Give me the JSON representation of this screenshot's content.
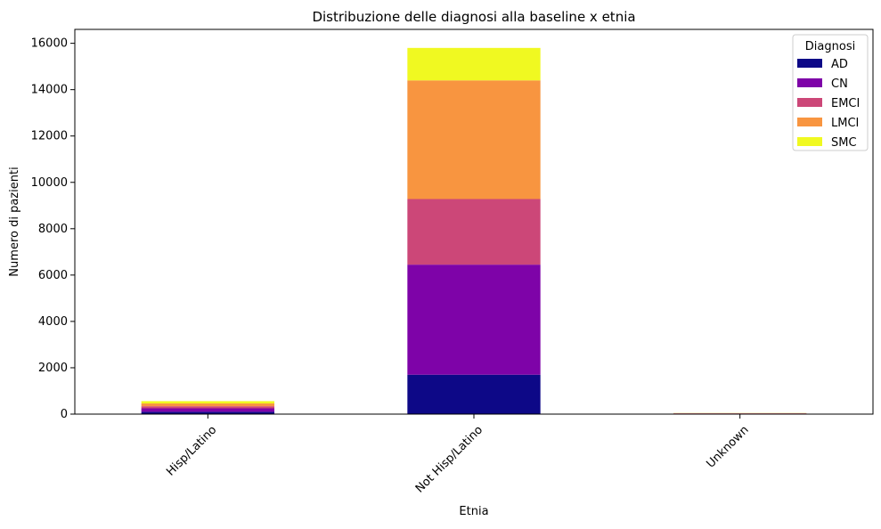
{
  "chart_data": {
    "type": "bar",
    "stacked": true,
    "title": "Distribuzione delle diagnosi alla baseline x etnia",
    "xlabel": "Etnia",
    "ylabel": "Numero di pazienti",
    "categories": [
      "Hisp/Latino",
      "Not Hisp/Latino",
      "Unknown"
    ],
    "ylim": [
      0,
      16600
    ],
    "yticks": [
      0,
      2000,
      4000,
      6000,
      8000,
      10000,
      12000,
      14000,
      16000
    ],
    "grid": false,
    "legend": {
      "title": "Diagnosi",
      "position": "top-right"
    },
    "series": [
      {
        "name": "AD",
        "color": "#0d0887",
        "values": [
          100,
          1700,
          10
        ]
      },
      {
        "name": "CN",
        "color": "#7e03a8",
        "values": [
          150,
          4750,
          15
        ]
      },
      {
        "name": "EMCI",
        "color": "#cc4778",
        "values": [
          90,
          2830,
          8
        ]
      },
      {
        "name": "LMCI",
        "color": "#f89540",
        "values": [
          120,
          5120,
          10
        ]
      },
      {
        "name": "SMC",
        "color": "#f0f921",
        "values": [
          100,
          1400,
          5
        ]
      }
    ]
  }
}
